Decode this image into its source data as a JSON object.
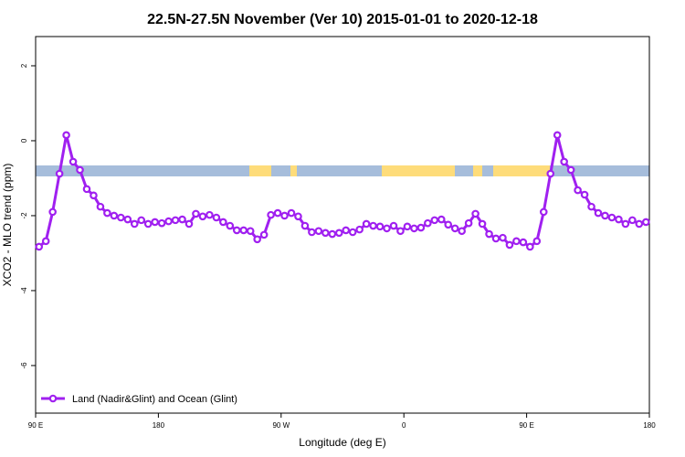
{
  "chart_data": {
    "type": "line",
    "title": "22.5N-27.5N November (Ver 10)   2015-01-01 to 2020-12-18",
    "xlabel": "Longitude (deg E)",
    "ylabel": "XCO2 - MLO trend (ppm)",
    "x": [
      92.5,
      97.5,
      102.5,
      107.5,
      112.5,
      117.5,
      122.5,
      127.5,
      132.5,
      137.5,
      142.5,
      147.5,
      152.5,
      157.5,
      162.5,
      167.5,
      172.5,
      177.5,
      182.5,
      187.5,
      192.5,
      197.5,
      202.5,
      207.5,
      212.5,
      217.5,
      222.5,
      227.5,
      232.5,
      237.5,
      242.5,
      247.5,
      252.5,
      257.5,
      262.5,
      267.5,
      272.5,
      277.5,
      282.5,
      287.5,
      292.5,
      297.5,
      302.5,
      307.5,
      312.5,
      317.5,
      322.5,
      327.5,
      332.5,
      337.5,
      342.5,
      347.5,
      352.5,
      357.5,
      362.5,
      367.5,
      372.5,
      377.5,
      382.5,
      387.5,
      392.5,
      397.5,
      402.5,
      407.5,
      412.5,
      417.5,
      422.5,
      427.5,
      432.5,
      437.5,
      442.5,
      447.5,
      452.5,
      457.5,
      462.5,
      467.5,
      472.5,
      477.5,
      482.5,
      487.5,
      492.5,
      497.5,
      502.5,
      507.5,
      512.5,
      517.5,
      522.5,
      527.5,
      532.5,
      537.5
    ],
    "series": [
      {
        "name": "Land (Nadir&Glint) and Ocean (Glint)",
        "color": "#a020f0",
        "values": [
          -2.83,
          -2.68,
          -1.9,
          -0.88,
          0.15,
          -0.56,
          -0.78,
          -1.29,
          -1.46,
          -1.76,
          -1.93,
          -2.0,
          -2.05,
          -2.1,
          -2.22,
          -2.12,
          -2.22,
          -2.17,
          -2.2,
          -2.15,
          -2.12,
          -2.1,
          -2.22,
          -1.95,
          -2.02,
          -1.98,
          -2.05,
          -2.17,
          -2.27,
          -2.39,
          -2.39,
          -2.41,
          -2.63,
          -2.51,
          -1.98,
          -1.93,
          -2.0,
          -1.93,
          -2.02,
          -2.27,
          -2.44,
          -2.41,
          -2.46,
          -2.49,
          -2.46,
          -2.39,
          -2.44,
          -2.37,
          -2.22,
          -2.27,
          -2.29,
          -2.34,
          -2.27,
          -2.41,
          -2.29,
          -2.34,
          -2.32,
          -2.2,
          -2.12,
          -2.1,
          -2.24,
          -2.34,
          -2.41,
          -2.2,
          -1.95,
          -2.22,
          -2.49,
          -2.61,
          -2.59,
          -2.78,
          -2.68,
          -2.71,
          -2.83,
          -2.68,
          -1.9,
          -0.88,
          0.15,
          -0.56,
          -0.78,
          -1.32,
          -1.44,
          -1.76,
          -1.93,
          -2.0,
          -2.05,
          -2.1,
          -2.22,
          -2.12,
          -2.22,
          -2.17
        ]
      }
    ],
    "xlim": [
      90,
      540
    ],
    "ylim": [
      -7.27,
      2.78
    ],
    "xticks": [
      {
        "value": 90,
        "label": "90 E"
      },
      {
        "value": 180,
        "label": "180"
      },
      {
        "value": 270,
        "label": "90 W"
      },
      {
        "value": 360,
        "label": "0"
      },
      {
        "value": 450,
        "label": "90 E"
      },
      {
        "value": 540,
        "label": "180"
      }
    ],
    "yticks": [
      -6,
      -4,
      -2,
      0,
      2
    ],
    "legend": "bottom-left"
  }
}
